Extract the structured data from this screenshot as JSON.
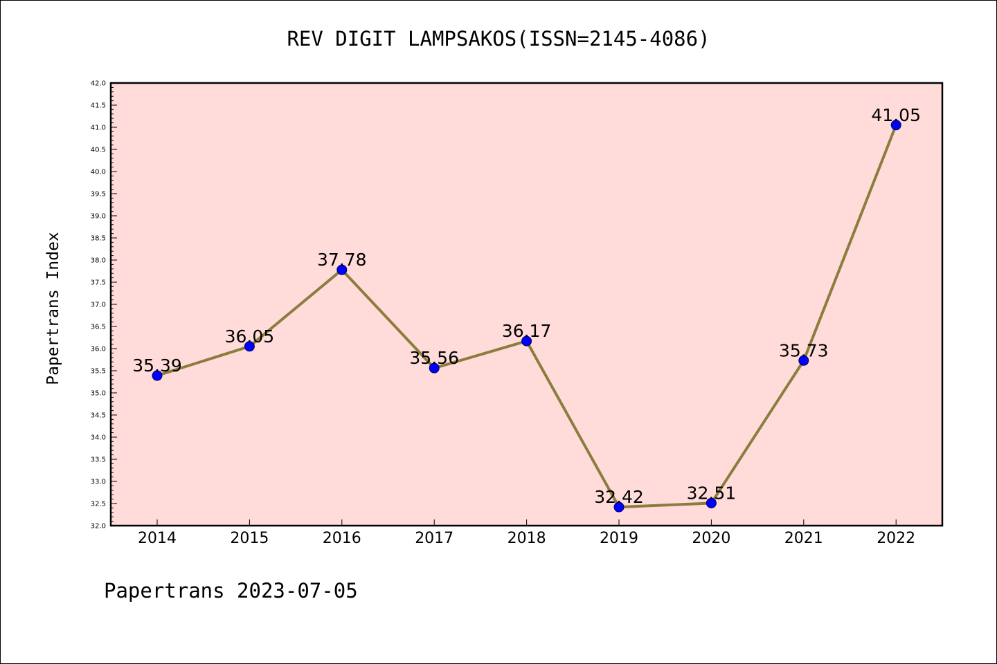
{
  "chart_data": {
    "type": "line",
    "title": "REV DIGIT LAMPSAKOS(ISSN=2145-4086)",
    "xlabel": "",
    "ylabel": "Papertrans Index",
    "footer": "Papertrans 2023-07-05",
    "categories": [
      "2014",
      "2015",
      "2016",
      "2017",
      "2018",
      "2019",
      "2020",
      "2021",
      "2022"
    ],
    "series": [
      {
        "values": [
          35.39,
          36.05,
          37.78,
          35.56,
          36.17,
          32.42,
          32.51,
          35.73,
          41.05
        ]
      }
    ],
    "data_labels": [
      "35.39",
      "36.05",
      "37.78",
      "35.56",
      "36.17",
      "32.42",
      "32.51",
      "35.73",
      "41.05"
    ],
    "ylim": [
      32.0,
      42.0
    ],
    "yticks": [
      "32.0",
      "32.5",
      "33.0",
      "33.5",
      "34.0",
      "34.5",
      "35.0",
      "35.5",
      "36.0",
      "36.5",
      "37.0",
      "37.5",
      "38.0",
      "38.5",
      "39.0",
      "39.5",
      "40.0",
      "40.5",
      "41.0",
      "41.5",
      "42.0"
    ],
    "grid": false,
    "legend": "none",
    "colors": {
      "plot_background": "#FFDCDA",
      "line": "#8B7D3D",
      "marker_fill": "#0000FF",
      "marker_edge": "#00005A",
      "axis": "#000000"
    }
  }
}
